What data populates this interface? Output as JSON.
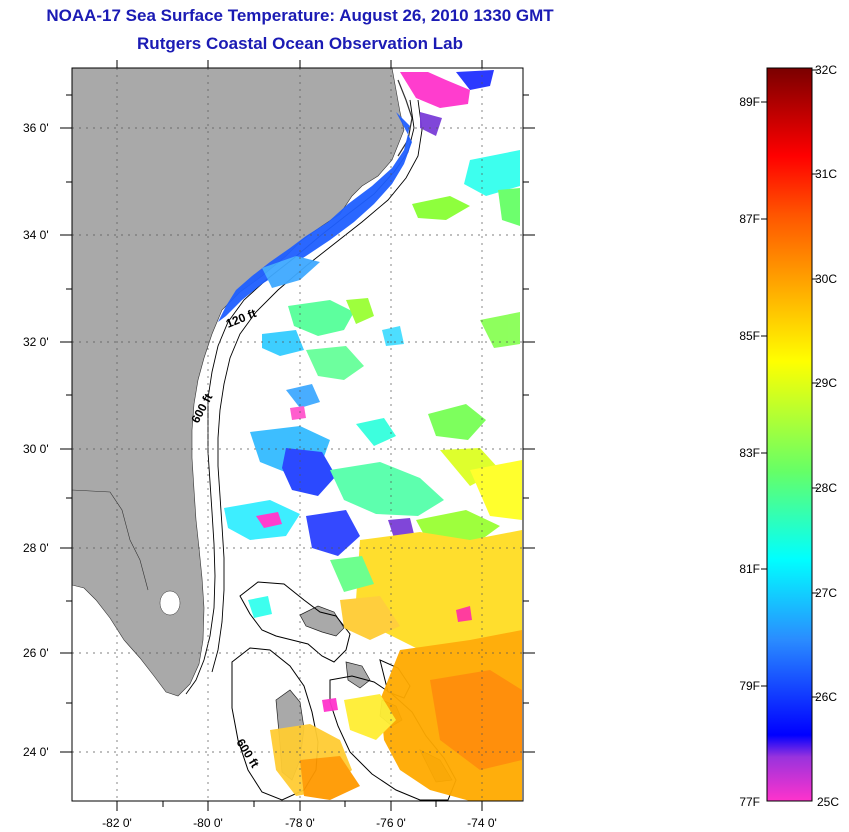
{
  "title": {
    "line1": "NOAA-17 Sea Surface Temperature:  August 26, 2010 1330 GMT",
    "line2": "Rutgers Coastal Ocean Observation Lab"
  },
  "map": {
    "lat_labels": [
      "36 0'",
      "34 0'",
      "32 0'",
      "30 0'",
      "28 0'",
      "26 0'",
      "24 0'"
    ],
    "lon_labels": [
      "-82 0'",
      "-80 0'",
      "-78 0'",
      "-76 0'",
      "-74 0'"
    ],
    "contours": {
      "c120": "120 ft",
      "c600a": "600 ft",
      "c600b": "600 ft"
    },
    "colors": {
      "land": "#a9a9a9",
      "frame": "#000000"
    }
  },
  "colorbar": {
    "celsius": [
      "32C",
      "31C",
      "30C",
      "29C",
      "28C",
      "27C",
      "26C",
      "25C"
    ],
    "fahrenheit": [
      "89F",
      "87F",
      "85F",
      "83F",
      "81F",
      "79F",
      "77F"
    ],
    "gradient": [
      "#ff33cc",
      "#7733dd",
      "#0000ff",
      "#2288ff",
      "#00ffff",
      "#44ff88",
      "#88ff22",
      "#ffff00",
      "#ffaa00",
      "#ff5500",
      "#ff0000",
      "#cc0000",
      "#800000"
    ]
  }
}
